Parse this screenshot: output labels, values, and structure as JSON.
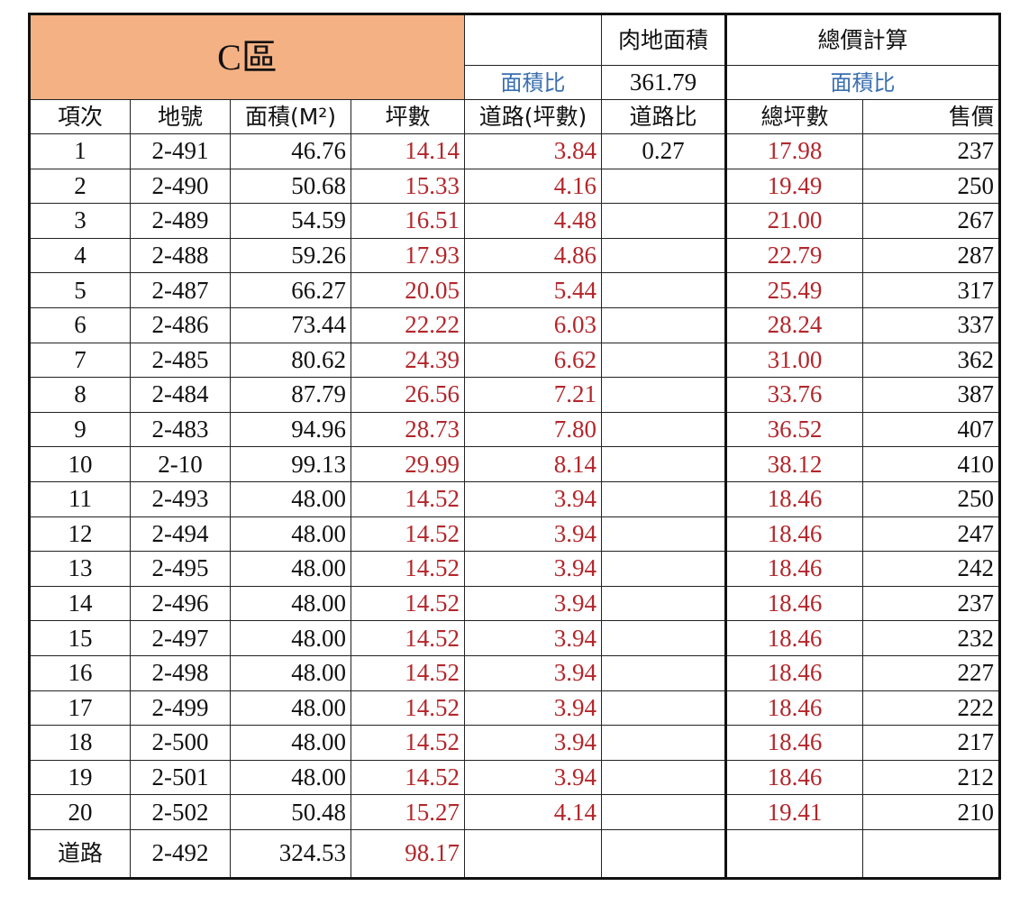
{
  "title": "C區",
  "header": {
    "land_area_label": "肉地面積",
    "land_area_value": "361.79",
    "total_calc_label": "總價計算",
    "area_ratio_label_1": "面積比",
    "area_ratio_label_2": "面積比"
  },
  "columns": [
    "項次",
    "地號",
    "面積(M²)",
    "坪數",
    "道路(坪數)",
    "道路比",
    "總坪數",
    "售價"
  ],
  "road_ratio": "0.27",
  "rows": [
    {
      "no": "1",
      "lot": "2-491",
      "area": "46.76",
      "ping": "14.14",
      "road": "3.84",
      "total": "17.98",
      "price": "237"
    },
    {
      "no": "2",
      "lot": "2-490",
      "area": "50.68",
      "ping": "15.33",
      "road": "4.16",
      "total": "19.49",
      "price": "250"
    },
    {
      "no": "3",
      "lot": "2-489",
      "area": "54.59",
      "ping": "16.51",
      "road": "4.48",
      "total": "21.00",
      "price": "267"
    },
    {
      "no": "4",
      "lot": "2-488",
      "area": "59.26",
      "ping": "17.93",
      "road": "4.86",
      "total": "22.79",
      "price": "287"
    },
    {
      "no": "5",
      "lot": "2-487",
      "area": "66.27",
      "ping": "20.05",
      "road": "5.44",
      "total": "25.49",
      "price": "317"
    },
    {
      "no": "6",
      "lot": "2-486",
      "area": "73.44",
      "ping": "22.22",
      "road": "6.03",
      "total": "28.24",
      "price": "337"
    },
    {
      "no": "7",
      "lot": "2-485",
      "area": "80.62",
      "ping": "24.39",
      "road": "6.62",
      "total": "31.00",
      "price": "362"
    },
    {
      "no": "8",
      "lot": "2-484",
      "area": "87.79",
      "ping": "26.56",
      "road": "7.21",
      "total": "33.76",
      "price": "387"
    },
    {
      "no": "9",
      "lot": "2-483",
      "area": "94.96",
      "ping": "28.73",
      "road": "7.80",
      "total": "36.52",
      "price": "407"
    },
    {
      "no": "10",
      "lot": "2-10",
      "area": "99.13",
      "ping": "29.99",
      "road": "8.14",
      "total": "38.12",
      "price": "410"
    },
    {
      "no": "11",
      "lot": "2-493",
      "area": "48.00",
      "ping": "14.52",
      "road": "3.94",
      "total": "18.46",
      "price": "250"
    },
    {
      "no": "12",
      "lot": "2-494",
      "area": "48.00",
      "ping": "14.52",
      "road": "3.94",
      "total": "18.46",
      "price": "247"
    },
    {
      "no": "13",
      "lot": "2-495",
      "area": "48.00",
      "ping": "14.52",
      "road": "3.94",
      "total": "18.46",
      "price": "242"
    },
    {
      "no": "14",
      "lot": "2-496",
      "area": "48.00",
      "ping": "14.52",
      "road": "3.94",
      "total": "18.46",
      "price": "237"
    },
    {
      "no": "15",
      "lot": "2-497",
      "area": "48.00",
      "ping": "14.52",
      "road": "3.94",
      "total": "18.46",
      "price": "232"
    },
    {
      "no": "16",
      "lot": "2-498",
      "area": "48.00",
      "ping": "14.52",
      "road": "3.94",
      "total": "18.46",
      "price": "227"
    },
    {
      "no": "17",
      "lot": "2-499",
      "area": "48.00",
      "ping": "14.52",
      "road": "3.94",
      "total": "18.46",
      "price": "222"
    },
    {
      "no": "18",
      "lot": "2-500",
      "area": "48.00",
      "ping": "14.52",
      "road": "3.94",
      "total": "18.46",
      "price": "217"
    },
    {
      "no": "19",
      "lot": "2-501",
      "area": "48.00",
      "ping": "14.52",
      "road": "3.94",
      "total": "18.46",
      "price": "212"
    },
    {
      "no": "20",
      "lot": "2-502",
      "area": "50.48",
      "ping": "15.27",
      "road": "4.14",
      "total": "19.41",
      "price": "210"
    }
  ],
  "road_row": {
    "no": "道路",
    "lot": "2-492",
    "area": "324.53",
    "ping": "98.17"
  }
}
